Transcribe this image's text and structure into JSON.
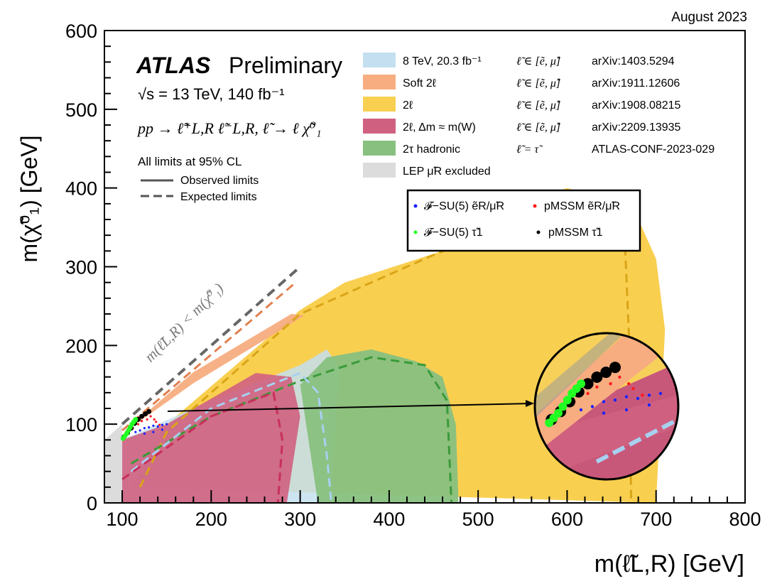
{
  "chart_data": {
    "type": "area",
    "date": "August 2023",
    "experiment": "ATLAS",
    "status": "Preliminary",
    "energy_lumi": "√s = 13 TeV, 140 fb⁻¹",
    "process": "pp → ℓ̃⁺L,R ℓ̃⁻L,R, ℓ̃ → ℓ χ̃⁰₁",
    "cl_note": "All limits at 95% CL",
    "line_legend": [
      {
        "name": "Observed limits",
        "style": "solid"
      },
      {
        "name": "Expected limits",
        "style": "dashed"
      }
    ],
    "xlabel": "m(ℓ̃L,R) [GeV]",
    "ylabel": "m(χ̃⁰₁) [GeV]",
    "xlim": [
      80,
      800
    ],
    "ylim": [
      0,
      600
    ],
    "xticks": [
      100,
      200,
      300,
      400,
      500,
      600,
      700,
      800
    ],
    "yticks": [
      0,
      100,
      200,
      300,
      400,
      500,
      600
    ],
    "diagonal_label": "m(ℓ̃L,R) < m(χ̃⁰₁)",
    "kinematic_line": [
      [
        100,
        100
      ],
      [
        300,
        300
      ]
    ],
    "series": [
      {
        "name": "8 TeV, 20.3 fb⁻¹",
        "selection": "ℓ̃ ∈ [ẽ, μ̃]",
        "ref": "arXiv:1403.5294",
        "color": "#c4dfef",
        "observed": [
          [
            100,
            0
          ],
          [
            100,
            80
          ],
          [
            200,
            130
          ],
          [
            300,
            175
          ],
          [
            330,
            195
          ],
          [
            345,
            170
          ],
          [
            340,
            110
          ],
          [
            335,
            0
          ]
        ],
        "expected": [
          [
            110,
            40
          ],
          [
            200,
            120
          ],
          [
            300,
            165
          ],
          [
            320,
            140
          ],
          [
            330,
            60
          ],
          [
            335,
            0
          ]
        ]
      },
      {
        "name": "Soft 2ℓ",
        "selection": "ℓ̃ ∈ [ẽ, μ̃]",
        "ref": "arXiv:1911.12606",
        "color": "#f7ad80",
        "observed": [
          [
            82,
            80
          ],
          [
            100,
            88
          ],
          [
            180,
            166
          ],
          [
            290,
            240
          ],
          [
            305,
            238
          ],
          [
            180,
            152
          ],
          [
            100,
            88
          ]
        ],
        "expected": [
          [
            100,
            92
          ],
          [
            295,
            280
          ]
        ]
      },
      {
        "name": "2ℓ",
        "selection": "ℓ̃ ∈ [ẽ, μ̃]",
        "ref": "arXiv:1908.08215",
        "color": "#f9cf50",
        "observed": [
          [
            110,
            20
          ],
          [
            150,
            100
          ],
          [
            300,
            245
          ],
          [
            350,
            280
          ],
          [
            460,
            320
          ],
          [
            560,
            385
          ],
          [
            600,
            400
          ],
          [
            650,
            385
          ],
          [
            680,
            360
          ],
          [
            700,
            310
          ],
          [
            710,
            220
          ],
          [
            700,
            0
          ]
        ],
        "expected": [
          [
            120,
            20
          ],
          [
            150,
            90
          ],
          [
            300,
            240
          ],
          [
            450,
            315
          ],
          [
            560,
            365
          ],
          [
            600,
            380
          ],
          [
            640,
            370
          ],
          [
            665,
            330
          ],
          [
            670,
            200
          ],
          [
            672,
            0
          ]
        ]
      },
      {
        "name": "2ℓ, Δm ≈ m(W)",
        "selection": "ℓ̃ ∈ [ẽ, μ̃]",
        "ref": "arXiv:2209.13935",
        "color": "#d06080",
        "observed": [
          [
            100,
            0
          ],
          [
            100,
            80
          ],
          [
            150,
            100
          ],
          [
            250,
            165
          ],
          [
            290,
            160
          ],
          [
            300,
            110
          ],
          [
            285,
            0
          ]
        ],
        "expected": [
          [
            100,
            30
          ],
          [
            200,
            110
          ],
          [
            270,
            140
          ],
          [
            280,
            80
          ],
          [
            275,
            0
          ]
        ]
      },
      {
        "name": "2τ hadronic",
        "selection": "ℓ̃ = τ̃",
        "ref": "ATLAS-CONF-2023-029",
        "color": "#88c080",
        "observed": [
          [
            300,
            150
          ],
          [
            330,
            185
          ],
          [
            380,
            195
          ],
          [
            430,
            180
          ],
          [
            460,
            160
          ],
          [
            475,
            100
          ],
          [
            478,
            0
          ],
          [
            320,
            0
          ]
        ],
        "expected": [
          [
            110,
            50
          ],
          [
            200,
            110
          ],
          [
            300,
            155
          ],
          [
            380,
            185
          ],
          [
            440,
            175
          ],
          [
            465,
            130
          ],
          [
            470,
            0
          ]
        ]
      },
      {
        "name": "LEP μ̃R excluded",
        "selection": "",
        "ref": "",
        "color": "#dcdcdc",
        "observed": [
          [
            80,
            0
          ],
          [
            80,
            80
          ],
          [
            100,
            100
          ],
          [
            100,
            0
          ]
        ],
        "expected": []
      }
    ],
    "model_legend": [
      {
        "name": "𝓕−SU(5) ẽR/μ̃R",
        "color": "#1a22ff"
      },
      {
        "name": "pMSSM ẽR/μ̃R",
        "color": "#ff1a1a"
      },
      {
        "name": "𝓕−SU(5) τ̃1",
        "color": "#22ff22"
      },
      {
        "name": "pMSSM τ̃1",
        "color": "#000000"
      }
    ],
    "model_points": {
      "f_su5_tau": [
        [
          101,
          82
        ],
        [
          103,
          85
        ],
        [
          105,
          88
        ],
        [
          107,
          92
        ],
        [
          109,
          96
        ],
        [
          111,
          100
        ],
        [
          113,
          103
        ],
        [
          115,
          106
        ]
      ],
      "pmssm_tau": [
        [
          102,
          84
        ],
        [
          106,
          89
        ],
        [
          110,
          95
        ],
        [
          114,
          101
        ],
        [
          118,
          106
        ],
        [
          122,
          110
        ],
        [
          126,
          113
        ],
        [
          130,
          116
        ]
      ],
      "f_su5_e": [
        [
          115,
          90
        ],
        [
          120,
          92
        ],
        [
          125,
          95
        ],
        [
          130,
          96
        ],
        [
          135,
          98
        ],
        [
          140,
          97
        ],
        [
          145,
          99
        ],
        [
          150,
          100
        ],
        [
          125,
          88
        ],
        [
          135,
          90
        ],
        [
          145,
          93
        ]
      ],
      "pmssm_e": [
        [
          112,
          95
        ],
        [
          118,
          100
        ],
        [
          122,
          104
        ],
        [
          128,
          106
        ],
        [
          132,
          110
        ],
        [
          138,
          103
        ],
        [
          142,
          99
        ],
        [
          136,
          106
        ]
      ]
    },
    "zoom_inset": {
      "note": "magnified view of the low-mass region"
    }
  }
}
